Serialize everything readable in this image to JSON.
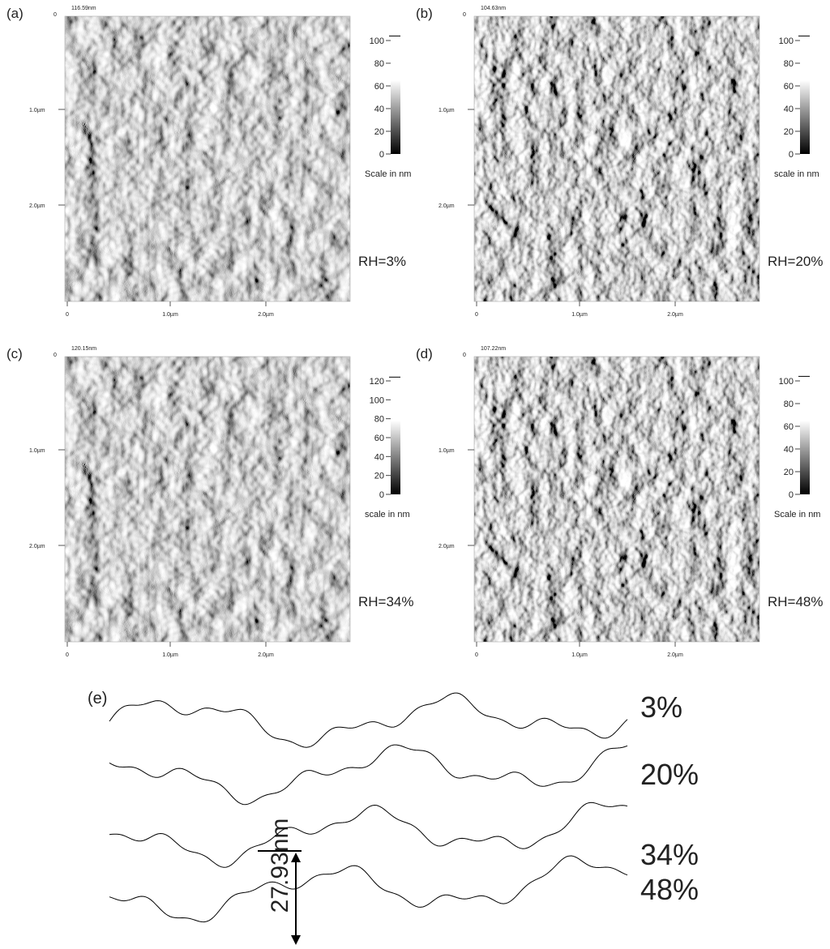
{
  "panels": [
    {
      "label": "(a)",
      "max_label": "116.59nm",
      "origin": "0",
      "y_labels": [
        "1.0µm",
        "2.0µm"
      ],
      "x_labels": [
        "0",
        "1.0µm",
        "2.0µm"
      ],
      "colorbar_ticks": [
        0,
        20,
        40,
        60,
        80,
        100
      ],
      "scale_label": "Scale in nm",
      "rh": "RH=3%"
    },
    {
      "label": "(b)",
      "max_label": "104.63nm",
      "origin": "0",
      "y_labels": [
        "1.0µm",
        "2.0µm"
      ],
      "x_labels": [
        "0",
        "1.0µm",
        "2.0µm"
      ],
      "colorbar_ticks": [
        0,
        20,
        40,
        60,
        80,
        100
      ],
      "scale_label": "scale in nm",
      "rh": "RH=20%"
    },
    {
      "label": "(c)",
      "max_label": "120.15nm",
      "origin": "0",
      "y_labels": [
        "1.0µm",
        "2.0µm"
      ],
      "x_labels": [
        "0",
        "1.0µm",
        "2.0µm"
      ],
      "colorbar_ticks": [
        0,
        20,
        40,
        60,
        80,
        100,
        120
      ],
      "scale_label": "scale in nm",
      "rh": "RH=34%"
    },
    {
      "label": "(d)",
      "max_label": "107.22nm",
      "origin": "0",
      "y_labels": [
        "1.0µm",
        "2.0µm"
      ],
      "x_labels": [
        "0",
        "1.0µm",
        "2.0µm"
      ],
      "colorbar_ticks": [
        0,
        20,
        40,
        60,
        80,
        100
      ],
      "scale_label": "Scale in nm",
      "rh": "RH=48%"
    }
  ],
  "profiles": {
    "label": "(e)",
    "curves": [
      "3%",
      "20%",
      "34%",
      "48%"
    ],
    "height_label": "27.93nm"
  }
}
